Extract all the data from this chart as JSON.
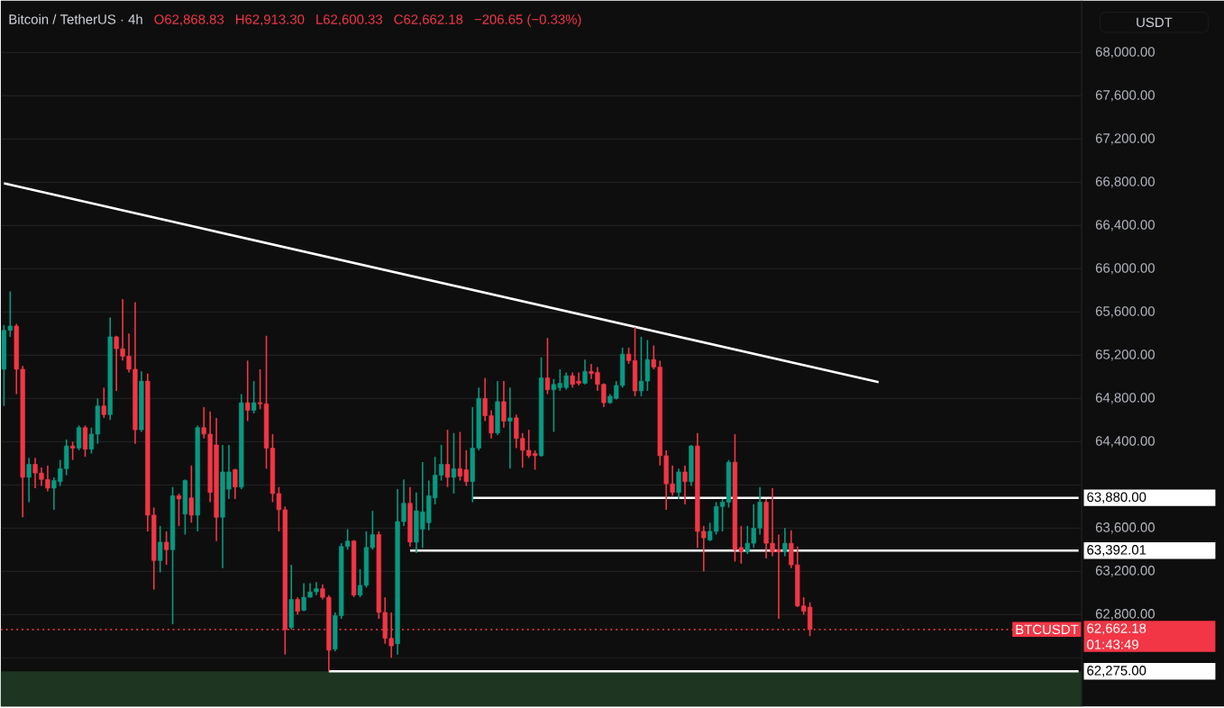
{
  "chart_data": {
    "type": "candlestick",
    "title": "Bitcoin / TetherUS · 4h",
    "ylabel": "USDT",
    "categories": [
      null,
      null,
      null,
      null,
      null,
      null,
      null,
      null,
      null,
      null,
      null,
      null,
      null,
      null,
      null,
      null,
      null,
      null,
      null,
      null,
      null,
      null,
      null,
      null,
      null,
      null,
      null,
      null,
      null,
      null,
      null,
      null,
      null,
      null,
      null,
      null,
      null,
      null,
      null,
      null,
      null,
      null,
      null,
      null,
      null,
      null,
      null,
      null,
      null,
      null,
      null,
      null,
      null,
      null,
      null,
      null,
      null,
      null,
      null,
      null,
      null,
      null,
      null,
      null,
      null,
      null,
      null,
      null,
      null,
      null,
      null,
      null,
      null,
      null,
      null,
      null,
      null,
      null,
      null,
      null,
      null,
      null,
      null,
      null,
      null,
      null,
      null,
      null,
      null,
      null,
      null,
      null,
      null,
      null,
      null,
      null,
      null,
      null,
      null,
      null,
      null,
      null,
      null,
      null,
      null,
      null,
      null,
      null,
      null,
      null,
      null,
      null,
      null,
      null,
      null,
      null,
      null,
      null,
      null,
      null,
      null,
      null,
      null,
      null,
      null,
      null,
      null,
      null,
      null,
      null,
      null,
      null,
      null,
      null,
      null,
      null,
      null,
      null,
      null,
      null,
      null,
      null,
      null,
      null,
      null,
      null,
      null,
      null,
      null,
      null,
      null,
      null,
      null,
      null,
      null,
      null,
      null,
      null,
      null,
      null,
      null,
      null,
      null,
      null,
      null,
      null,
      null,
      null,
      null,
      null,
      null,
      null,
      null
    ],
    "ohlc": [
      [
        65070,
        65480,
        64730,
        65430
      ],
      [
        65430,
        65790,
        65370,
        65470
      ],
      [
        65470,
        65490,
        64840,
        65070
      ],
      [
        65070,
        65100,
        63700,
        64070
      ],
      [
        64070,
        64250,
        63840,
        64190
      ],
      [
        64190,
        64250,
        63970,
        64110
      ],
      [
        64110,
        64160,
        63990,
        64050
      ],
      [
        64050,
        64180,
        63940,
        63970
      ],
      [
        63970,
        64070,
        63770,
        64040
      ],
      [
        64030,
        64230,
        63990,
        64150
      ],
      [
        64150,
        64420,
        64090,
        64360
      ],
      [
        64360,
        64400,
        64230,
        64340
      ],
      [
        64340,
        64550,
        64320,
        64530
      ],
      [
        64530,
        64550,
        64260,
        64330
      ],
      [
        64330,
        64530,
        64290,
        64470
      ],
      [
        64470,
        64800,
        64380,
        64730
      ],
      [
        64730,
        64900,
        64620,
        64650
      ],
      [
        64650,
        65550,
        64600,
        65370
      ],
      [
        65370,
        65380,
        64870,
        65260
      ],
      [
        65260,
        65720,
        65150,
        65190
      ],
      [
        65190,
        65400,
        65040,
        65070
      ],
      [
        65070,
        65690,
        64380,
        64510
      ],
      [
        64510,
        65050,
        64490,
        64960
      ],
      [
        64960,
        65030,
        63570,
        63720
      ],
      [
        63720,
        63790,
        63030,
        63300
      ],
      [
        63300,
        63620,
        63190,
        63470
      ],
      [
        63470,
        63570,
        63260,
        63400
      ],
      [
        63400,
        63980,
        62710,
        63900
      ],
      [
        63900,
        63920,
        63620,
        63870
      ],
      [
        63730,
        64050,
        63540,
        64040
      ],
      [
        63880,
        64180,
        63650,
        63720
      ],
      [
        63720,
        64550,
        63570,
        64530
      ],
      [
        64530,
        64720,
        64430,
        64470
      ],
      [
        64470,
        64680,
        63840,
        63930
      ],
      [
        64370,
        64620,
        63480,
        63700
      ],
      [
        63700,
        64370,
        63230,
        64120
      ],
      [
        63960,
        64370,
        63870,
        64120
      ],
      [
        64140,
        64150,
        63870,
        63980
      ],
      [
        63980,
        64840,
        63960,
        64760
      ],
      [
        64760,
        65150,
        64590,
        64690
      ],
      [
        64690,
        64960,
        64660,
        64760
      ],
      [
        64760,
        65070,
        64700,
        64750
      ],
      [
        64750,
        65380,
        64150,
        64340
      ],
      [
        64340,
        64470,
        63840,
        63920
      ],
      [
        63920,
        63980,
        63570,
        63770
      ],
      [
        63770,
        63800,
        62430,
        62660
      ],
      [
        62680,
        63260,
        62660,
        62940
      ],
      [
        62940,
        62960,
        62800,
        62830
      ],
      [
        62840,
        63090,
        62830,
        62960
      ],
      [
        62960,
        63090,
        62960,
        63010
      ],
      [
        63010,
        63100,
        62980,
        63040
      ],
      [
        63040,
        63080,
        62940,
        62960
      ],
      [
        62960,
        62980,
        62275,
        62470
      ],
      [
        62480,
        62820,
        62460,
        62790
      ],
      [
        62790,
        63460,
        62760,
        63430
      ],
      [
        63430,
        63590,
        63400,
        63480
      ],
      [
        63480,
        63490,
        62960,
        62980
      ],
      [
        62980,
        63220,
        62960,
        63070
      ],
      [
        63070,
        63570,
        63050,
        63420
      ],
      [
        63420,
        63760,
        63400,
        63540
      ],
      [
        63540,
        63570,
        62760,
        62820
      ],
      [
        62820,
        62960,
        62530,
        62580
      ],
      [
        62580,
        62820,
        62400,
        62510
      ],
      [
        62530,
        63960,
        62430,
        63660
      ],
      [
        63660,
        64050,
        63620,
        63830
      ],
      [
        63830,
        63980,
        63430,
        63470
      ],
      [
        63470,
        63930,
        63370,
        63760
      ],
      [
        63590,
        64210,
        63420,
        63750
      ],
      [
        63650,
        64040,
        63580,
        63900
      ],
      [
        63880,
        64260,
        63820,
        64090
      ],
      [
        64090,
        64370,
        64040,
        64190
      ],
      [
        64190,
        64510,
        63980,
        64070
      ],
      [
        64070,
        64480,
        63920,
        64150
      ],
      [
        64150,
        64490,
        64040,
        64080
      ],
      [
        64140,
        64320,
        63990,
        64030
      ],
      [
        64030,
        64720,
        63840,
        64340
      ],
      [
        64340,
        64900,
        64320,
        64800
      ],
      [
        64800,
        64990,
        64590,
        64640
      ],
      [
        64640,
        64690,
        64430,
        64480
      ],
      [
        64480,
        64960,
        64460,
        64770
      ],
      [
        64770,
        64960,
        64530,
        64590
      ],
      [
        64590,
        64900,
        64150,
        64620
      ],
      [
        64620,
        64650,
        64340,
        64430
      ],
      [
        64430,
        64480,
        64160,
        64320
      ],
      [
        64320,
        64510,
        64250,
        64270
      ],
      [
        64290,
        64320,
        64140,
        64270
      ],
      [
        64270,
        65180,
        64260,
        64990
      ],
      [
        64990,
        65360,
        64840,
        64880
      ],
      [
        64880,
        64980,
        64490,
        64930
      ],
      [
        64900,
        65070,
        64870,
        64940
      ],
      [
        64900,
        65040,
        64880,
        65010
      ],
      [
        65010,
        65040,
        64900,
        64930
      ],
      [
        64960,
        65040,
        64920,
        64940
      ],
      [
        64940,
        65160,
        64930,
        65050
      ],
      [
        65050,
        65120,
        64980,
        65030
      ],
      [
        65040,
        65090,
        64870,
        64930
      ],
      [
        64930,
        64940,
        64720,
        64760
      ],
      [
        64760,
        64840,
        64750,
        64820
      ],
      [
        64800,
        64960,
        64790,
        64920
      ],
      [
        64920,
        65270,
        64900,
        65210
      ],
      [
        65210,
        65270,
        65120,
        65150
      ],
      [
        65150,
        65460,
        64820,
        64870
      ],
      [
        64870,
        65370,
        64820,
        64960
      ],
      [
        64960,
        65340,
        64870,
        65160
      ],
      [
        65160,
        65290,
        65070,
        65090
      ],
      [
        65090,
        65150,
        64180,
        64270
      ],
      [
        64270,
        64320,
        63770,
        64010
      ],
      [
        64010,
        64180,
        63900,
        63930
      ],
      [
        63930,
        64150,
        63870,
        64120
      ],
      [
        64120,
        64180,
        63820,
        64030
      ],
      [
        64030,
        64370,
        63990,
        64360
      ],
      [
        64360,
        64480,
        63420,
        63570
      ],
      [
        63570,
        63620,
        63200,
        63510
      ],
      [
        63490,
        63650,
        63480,
        63570
      ],
      [
        63570,
        63840,
        63540,
        63800
      ],
      [
        63800,
        63870,
        63570,
        63840
      ],
      [
        63840,
        64230,
        63790,
        64210
      ],
      [
        64210,
        64470,
        63290,
        63400
      ],
      [
        63420,
        63620,
        63270,
        63380
      ],
      [
        63380,
        63620,
        63360,
        63460
      ],
      [
        63460,
        63820,
        63420,
        63600
      ],
      [
        63600,
        63980,
        63540,
        63840
      ],
      [
        63840,
        63870,
        63320,
        63460
      ],
      [
        63460,
        63970,
        63340,
        63380
      ],
      [
        63400,
        63540,
        62760,
        63380
      ],
      [
        63380,
        63600,
        63340,
        63460
      ],
      [
        63460,
        63580,
        63230,
        63260
      ],
      [
        63260,
        63430,
        62870,
        62880
      ],
      [
        62880,
        62960,
        62800,
        62830
      ],
      [
        62868.83,
        62913.3,
        62600.33,
        62662.18
      ],
      null,
      null,
      null,
      null,
      null,
      null,
      null,
      null,
      null,
      null,
      null,
      null,
      null,
      null,
      null,
      null,
      null,
      null,
      null,
      null,
      null,
      null,
      null,
      null,
      null,
      null,
      null,
      null,
      null,
      null,
      null,
      null,
      null,
      null,
      null,
      null,
      null,
      null,
      null,
      null,
      null,
      null,
      null
    ],
    "colors": [
      "#089981",
      "#089981",
      "#f23645",
      "#f23645",
      "#089981",
      "#f23645",
      "#f23645",
      "#f23645",
      "#089981",
      "#089981",
      "#089981",
      "#f23645",
      "#089981",
      "#f23645",
      "#089981",
      "#089981",
      "#f23645",
      "#089981",
      "#f23645",
      "#f23645",
      "#f23645",
      "#f23645",
      "#089981",
      "#f23645",
      "#f23645",
      "#089981",
      "#f23645",
      "#089981",
      "#f23645",
      "#089981",
      "#f23645",
      "#089981",
      "#f23645",
      "#f23645",
      "#f23645",
      "#089981",
      "#089981",
      "#f23645",
      "#089981",
      "#f23645",
      "#089981",
      "#f23645",
      "#f23645",
      "#f23645",
      "#f23645",
      "#f23645",
      "#089981",
      "#f23645",
      "#089981",
      "#089981",
      "#089981",
      "#f23645",
      "#f23645",
      "#089981",
      "#089981",
      "#089981",
      "#f23645",
      "#089981",
      "#089981",
      "#089981",
      "#f23645",
      "#f23645",
      "#f23645",
      "#089981",
      "#089981",
      "#f23645",
      "#089981",
      "#089981",
      "#089981",
      "#089981",
      "#089981",
      "#f23645",
      "#089981",
      "#f23645",
      "#f23645",
      "#089981",
      "#089981",
      "#f23645",
      "#f23645",
      "#089981",
      "#f23645",
      "#089981",
      "#f23645",
      "#f23645",
      "#f23645",
      "#f23645",
      "#089981",
      "#f23645",
      "#089981",
      "#089981",
      "#089981",
      "#f23645",
      "#f23645",
      "#089981",
      "#f23645",
      "#f23645",
      "#f23645",
      "#089981",
      "#089981",
      "#089981",
      "#f23645",
      "#f23645",
      "#089981",
      "#089981",
      "#f23645",
      "#f23645",
      "#f23645",
      "#f23645",
      "#089981",
      "#f23645",
      "#089981",
      "#f23645",
      "#f23645",
      "#089981",
      "#089981",
      "#089981",
      "#089981",
      "#f23645",
      "#f23645",
      "#089981",
      "#089981",
      "#089981",
      "#f23645",
      "#f23645",
      "#f23645",
      "#089981",
      "#f23645",
      "#f23645",
      "#f23645",
      "#f23645",
      null,
      null,
      null,
      null,
      null,
      null,
      null,
      null,
      null,
      null,
      null,
      null,
      null,
      null,
      null,
      null,
      null,
      null,
      null,
      null,
      null,
      null,
      null,
      null,
      null,
      null,
      null,
      null,
      null,
      null,
      null,
      null,
      null,
      null,
      null,
      null,
      null,
      null,
      null,
      null,
      null,
      null,
      null
    ],
    "series": [
      {
        "type": "line",
        "color": "#ffffff",
        "values": [
          66790,
          null,
          null,
          null,
          null,
          null,
          null,
          null,
          null,
          null,
          null,
          null,
          null,
          null,
          null,
          null,
          null,
          null,
          null,
          null,
          null,
          null,
          null,
          null,
          null,
          null,
          null,
          null,
          null,
          null,
          null,
          null,
          null,
          null,
          null,
          null,
          null,
          null,
          null,
          null,
          null,
          null,
          null,
          null,
          null,
          null,
          null,
          null,
          null,
          null,
          null,
          null,
          null,
          null,
          null,
          null,
          null,
          null,
          null,
          null,
          null,
          null,
          null,
          null,
          null,
          null,
          null,
          null,
          null,
          null,
          null,
          null,
          null,
          null,
          null,
          null,
          null,
          null,
          null,
          null,
          null,
          null,
          null,
          null,
          null,
          null,
          null,
          null,
          null,
          null,
          null,
          null,
          null,
          null,
          null,
          null,
          null,
          null,
          null,
          null,
          null,
          null,
          null,
          null,
          null,
          null,
          null,
          null,
          null,
          null,
          null,
          null,
          null,
          null,
          null,
          null,
          null,
          null,
          null,
          null,
          null,
          null,
          null,
          null,
          null,
          null,
          null,
          null,
          null,
          null,
          null,
          null,
          null,
          null,
          null,
          null,
          null,
          null,
          null,
          null,
          64950,
          null,
          null,
          null,
          null,
          null,
          null,
          null,
          null,
          null,
          null,
          null,
          null,
          null,
          null,
          null,
          null,
          null,
          null,
          null,
          null,
          null,
          null,
          null,
          null,
          null,
          null,
          null,
          null,
          null,
          null,
          null,
          null
        ]
      },
      {
        "type": "line",
        "color": "#ffffff",
        "name": "63,880.00",
        "values": [
          null,
          null,
          null,
          null,
          null,
          null,
          null,
          null,
          null,
          null,
          null,
          null,
          null,
          null,
          null,
          null,
          null,
          null,
          null,
          null,
          null,
          null,
          null,
          null,
          null,
          null,
          null,
          null,
          null,
          null,
          null,
          null,
          null,
          null,
          null,
          null,
          null,
          null,
          null,
          null,
          null,
          null,
          null,
          null,
          null,
          null,
          null,
          null,
          null,
          null,
          null,
          null,
          null,
          null,
          null,
          null,
          null,
          null,
          null,
          null,
          null,
          null,
          null,
          null,
          null,
          null,
          null,
          null,
          null,
          null,
          null,
          null,
          null,
          null,
          null,
          63880,
          63880,
          63880,
          63880,
          63880,
          63880,
          63880,
          63880,
          63880,
          63880,
          63880,
          63880,
          63880,
          63880,
          63880,
          63880,
          63880,
          63880,
          63880,
          63880,
          63880,
          63880,
          63880,
          63880,
          63880,
          63880,
          63880,
          63880,
          63880,
          63880,
          63880,
          63880,
          63880,
          63880,
          63880,
          63880,
          63880,
          63880,
          63880,
          63880,
          63880,
          63880,
          63880,
          63880,
          63880,
          63880,
          63880,
          63880,
          63880,
          63880,
          63880,
          63880,
          63880,
          63880,
          63880,
          63880,
          63880,
          63880,
          63880,
          63880,
          63880,
          63880,
          63880,
          63880,
          63880,
          63880,
          63880,
          63880,
          63880,
          63880,
          63880,
          63880,
          63880,
          63880,
          63880,
          63880,
          63880,
          63880,
          63880,
          63880,
          63880,
          63880,
          63880,
          63880,
          63880,
          63880,
          63880,
          63880,
          63880,
          63880,
          63880,
          63880,
          63880,
          63880,
          63880,
          63880,
          63880,
          63880
        ]
      },
      {
        "type": "line",
        "color": "#ffffff",
        "name": "63,392.01",
        "values": [
          null,
          null,
          null,
          null,
          null,
          null,
          null,
          null,
          null,
          null,
          null,
          null,
          null,
          null,
          null,
          null,
          null,
          null,
          null,
          null,
          null,
          null,
          null,
          null,
          null,
          null,
          null,
          null,
          null,
          null,
          null,
          null,
          null,
          null,
          null,
          null,
          null,
          null,
          null,
          null,
          null,
          null,
          null,
          null,
          null,
          null,
          null,
          null,
          null,
          null,
          null,
          null,
          null,
          null,
          null,
          null,
          null,
          null,
          null,
          null,
          null,
          null,
          null,
          null,
          null,
          63392.01,
          63392.01,
          63392.01,
          63392.01,
          63392.01,
          63392.01,
          63392.01,
          63392.01,
          63392.01,
          63392.01,
          63392.01,
          63392.01,
          63392.01,
          63392.01,
          63392.01,
          63392.01,
          63392.01,
          63392.01,
          63392.01,
          63392.01,
          63392.01,
          63392.01,
          63392.01,
          63392.01,
          63392.01,
          63392.01,
          63392.01,
          63392.01,
          63392.01,
          63392.01,
          63392.01,
          63392.01,
          63392.01,
          63392.01,
          63392.01,
          63392.01,
          63392.01,
          63392.01,
          63392.01,
          63392.01,
          63392.01,
          63392.01,
          63392.01,
          63392.01,
          63392.01,
          63392.01,
          63392.01,
          63392.01,
          63392.01,
          63392.01,
          63392.01,
          63392.01,
          63392.01,
          63392.01,
          63392.01,
          63392.01,
          63392.01,
          63392.01,
          63392.01,
          63392.01,
          63392.01,
          63392.01,
          63392.01,
          63392.01,
          63392.01,
          63392.01,
          63392.01,
          63392.01,
          63392.01,
          63392.01,
          63392.01,
          63392.01,
          63392.01,
          63392.01,
          63392.01,
          63392.01,
          63392.01,
          63392.01,
          63392.01,
          63392.01,
          63392.01,
          63392.01,
          63392.01,
          63392.01,
          63392.01,
          63392.01,
          63392.01,
          63392.01,
          63392.01,
          63392.01,
          63392.01,
          63392.01,
          63392.01,
          63392.01,
          63392.01,
          63392.01,
          63392.01,
          63392.01,
          63392.01,
          63392.01,
          63392.01,
          63392.01,
          63392.01,
          63392.01,
          63392.01,
          63392.01,
          63392.01,
          63392.01
        ]
      },
      {
        "type": "line",
        "color": "#ffffff",
        "name": "62,275.00",
        "values": [
          null,
          null,
          null,
          null,
          null,
          null,
          null,
          null,
          null,
          null,
          null,
          null,
          null,
          null,
          null,
          null,
          null,
          null,
          null,
          null,
          null,
          null,
          null,
          null,
          null,
          null,
          null,
          null,
          null,
          null,
          null,
          null,
          null,
          null,
          null,
          null,
          null,
          null,
          null,
          null,
          null,
          null,
          null,
          null,
          null,
          null,
          null,
          null,
          null,
          null,
          null,
          null,
          62275,
          62275,
          62275,
          62275,
          62275,
          62275,
          62275,
          62275,
          62275,
          62275,
          62275,
          62275,
          62275,
          62275,
          62275,
          62275,
          62275,
          62275,
          62275,
          62275,
          62275,
          62275,
          62275,
          62275,
          62275,
          62275,
          62275,
          62275,
          62275,
          62275,
          62275,
          62275,
          62275,
          62275,
          62275,
          62275,
          62275,
          62275,
          62275,
          62275,
          62275,
          62275,
          62275,
          62275,
          62275,
          62275,
          62275,
          62275,
          62275,
          62275,
          62275,
          62275,
          62275,
          62275,
          62275,
          62275,
          62275,
          62275,
          62275,
          62275,
          62275,
          62275,
          62275,
          62275,
          62275,
          62275,
          62275,
          62275,
          62275,
          62275,
          62275,
          62275,
          62275,
          62275,
          62275,
          62275,
          62275,
          62275,
          62275,
          62275,
          62275,
          62275,
          62275,
          62275,
          62275,
          62275,
          62275,
          62275,
          62275,
          62275,
          62275,
          62275,
          62275,
          62275,
          62275,
          62275,
          62275,
          62275,
          62275,
          62275,
          62275,
          62275,
          62275,
          62275,
          62275,
          62275,
          62275,
          62275,
          62275,
          62275,
          62275,
          62275,
          62275,
          62275,
          62275,
          62275,
          62275,
          62275,
          62275,
          62275,
          62275
        ]
      }
    ],
    "ref_lines": [
      {
        "axis": "y",
        "value": 62662.18,
        "label": "62,662.18",
        "color": "#f23645",
        "line_style": "dotted"
      }
    ],
    "bands": [
      {
        "axis": "y",
        "from": 61950,
        "to": 62275,
        "color": "#1e3522"
      }
    ],
    "annotations": [
      "O62,868.83",
      "H62,913.30",
      "L62,600.33",
      "C62,662.18",
      "−206.65 (−0.33%)",
      "BTCUSDT",
      "01:43:49"
    ],
    "ylim": [
      61950,
      68480
    ],
    "yticks": [
      {
        "value": 62000,
        "label": null
      },
      {
        "value": 62400,
        "label": null
      },
      {
        "value": 62800,
        "label": "62,800.00"
      },
      {
        "value": 63200,
        "label": "63,200.00"
      },
      {
        "value": 63600,
        "label": "63,600.00"
      },
      {
        "value": 64000,
        "label": null
      },
      {
        "value": 64400,
        "label": "64,400.00"
      },
      {
        "value": 64800,
        "label": "64,800.00"
      },
      {
        "value": 65200,
        "label": "65,200.00"
      },
      {
        "value": 65600,
        "label": "65,600.00"
      },
      {
        "value": 66000,
        "label": "66,000.00"
      },
      {
        "value": 66400,
        "label": "66,400.00"
      },
      {
        "value": 66800,
        "label": "66,800.00"
      },
      {
        "value": 67200,
        "label": "67,200.00"
      },
      {
        "value": 67600,
        "label": "67,600.00"
      },
      {
        "value": 68000,
        "label": "68,000.00"
      }
    ],
    "grid": "y",
    "tick_labels": "y"
  }
}
